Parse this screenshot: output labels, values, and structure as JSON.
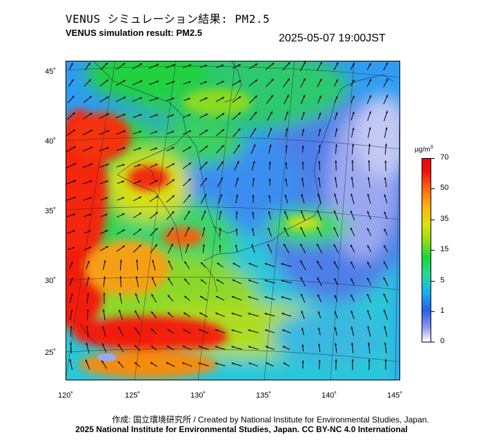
{
  "title": {
    "japanese": "VENUS シミュレーション結果: PM2.5",
    "english": "VENUS simulation result: PM2.5",
    "timestamp": "2025-05-07 19:00JST"
  },
  "map": {
    "variable": "PM2.5",
    "lat_ticks": [
      "45˚",
      "40˚",
      "35˚",
      "30˚",
      "25˚"
    ],
    "lon_ticks": [
      "120˚",
      "125˚",
      "130˚",
      "135˚",
      "140˚",
      "145˚"
    ]
  },
  "colorbar": {
    "unit": "µg/m",
    "unit_sup": "3",
    "labels": [
      "70",
      "50",
      "35",
      "15",
      "5",
      "1",
      "0"
    ],
    "colors": [
      "#e80c0c",
      "#ff6312",
      "#ffb210",
      "#dce10e",
      "#8ede12",
      "#18d53c",
      "#29d69e",
      "#16b0f0",
      "#2a60e6",
      "#8c96ee",
      "#ffffff"
    ]
  },
  "credits": {
    "line1": "作成: 国立環境研究所 / Created by National Institute for Environmental Studies, Japan.",
    "line2": "2025 National Institute for Environmental Studies, Japan. CC BY-NC 4.0 International"
  }
}
